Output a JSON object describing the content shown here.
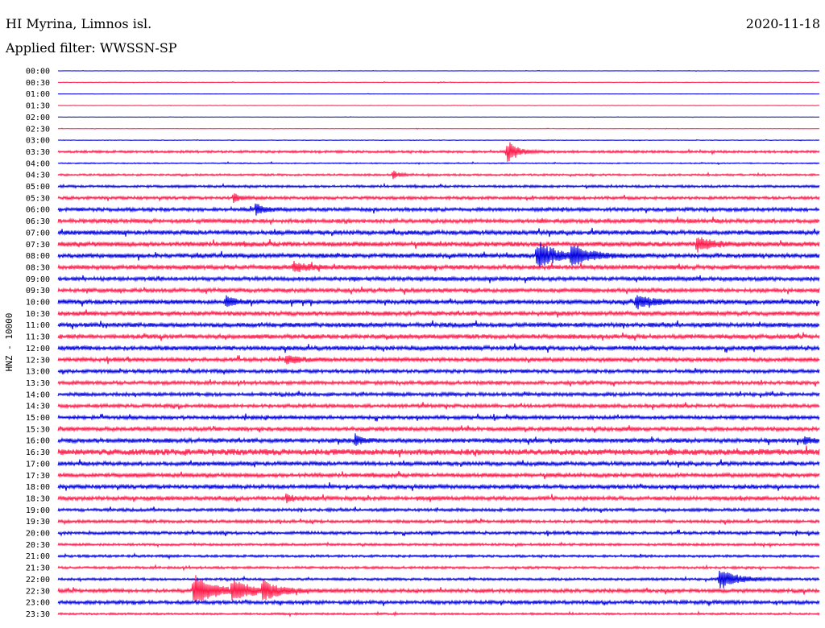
{
  "header": {
    "station": "HI Myrina, Limnos isl.",
    "filter": "Applied filter: WWSSN-SP",
    "date": "2020-11-18"
  },
  "chart_data": {
    "type": "line",
    "ylabel": "HNZ - 10000",
    "colors": [
      "#0000e0",
      "#ff1a4a"
    ],
    "times": [
      "00:00",
      "00:30",
      "01:00",
      "01:30",
      "02:00",
      "02:30",
      "03:00",
      "03:30",
      "04:00",
      "04:30",
      "05:00",
      "05:30",
      "06:00",
      "06:30",
      "07:00",
      "07:30",
      "08:00",
      "08:30",
      "09:00",
      "09:30",
      "10:00",
      "10:30",
      "11:00",
      "11:30",
      "12:00",
      "12:30",
      "13:00",
      "13:30",
      "14:00",
      "14:30",
      "15:00",
      "15:30",
      "16:00",
      "16:30",
      "17:00",
      "17:30",
      "18:00",
      "18:30",
      "19:00",
      "19:30",
      "20:00",
      "20:30",
      "21:00",
      "21:30",
      "22:00",
      "22:30",
      "23:00",
      "23:30"
    ],
    "noise_level": [
      0.2,
      0.3,
      0.2,
      0.2,
      0.2,
      0.2,
      0.3,
      1.2,
      0.6,
      1.0,
      1.2,
      1.5,
      1.8,
      2.0,
      2.2,
      2.4,
      2.2,
      2.2,
      2.0,
      2.0,
      2.2,
      2.2,
      2.2,
      2.2,
      2.2,
      2.0,
      1.8,
      1.8,
      1.8,
      1.8,
      1.8,
      2.0,
      2.2,
      3.0,
      2.0,
      2.0,
      2.0,
      2.0,
      1.5,
      1.5,
      1.5,
      1.2,
      1.2,
      1.2,
      1.2,
      1.8,
      1.8,
      1.0
    ],
    "events": [
      {
        "row": 7,
        "x": 0.59,
        "amp": 14,
        "width": 0.006
      },
      {
        "row": 9,
        "x": 0.44,
        "amp": 5,
        "width": 0.004
      },
      {
        "row": 11,
        "x": 0.23,
        "amp": 6,
        "width": 0.004
      },
      {
        "row": 12,
        "x": 0.26,
        "amp": 7,
        "width": 0.005
      },
      {
        "row": 15,
        "x": 0.84,
        "amp": 9,
        "width": 0.008
      },
      {
        "row": 16,
        "x": 0.63,
        "amp": 18,
        "width": 0.01
      },
      {
        "row": 16,
        "x": 0.675,
        "amp": 12,
        "width": 0.01
      },
      {
        "row": 17,
        "x": 0.31,
        "amp": 6,
        "width": 0.008
      },
      {
        "row": 20,
        "x": 0.22,
        "amp": 7,
        "width": 0.005
      },
      {
        "row": 20,
        "x": 0.76,
        "amp": 8,
        "width": 0.01
      },
      {
        "row": 25,
        "x": 0.3,
        "amp": 5,
        "width": 0.008
      },
      {
        "row": 32,
        "x": 0.39,
        "amp": 7,
        "width": 0.004
      },
      {
        "row": 32,
        "x": 0.98,
        "amp": 6,
        "width": 0.004
      },
      {
        "row": 37,
        "x": 0.3,
        "amp": 5,
        "width": 0.004
      },
      {
        "row": 44,
        "x": 0.87,
        "amp": 12,
        "width": 0.01
      },
      {
        "row": 45,
        "x": 0.18,
        "amp": 18,
        "width": 0.012
      },
      {
        "row": 45,
        "x": 0.23,
        "amp": 12,
        "width": 0.01
      },
      {
        "row": 45,
        "x": 0.27,
        "amp": 10,
        "width": 0.01
      }
    ]
  }
}
